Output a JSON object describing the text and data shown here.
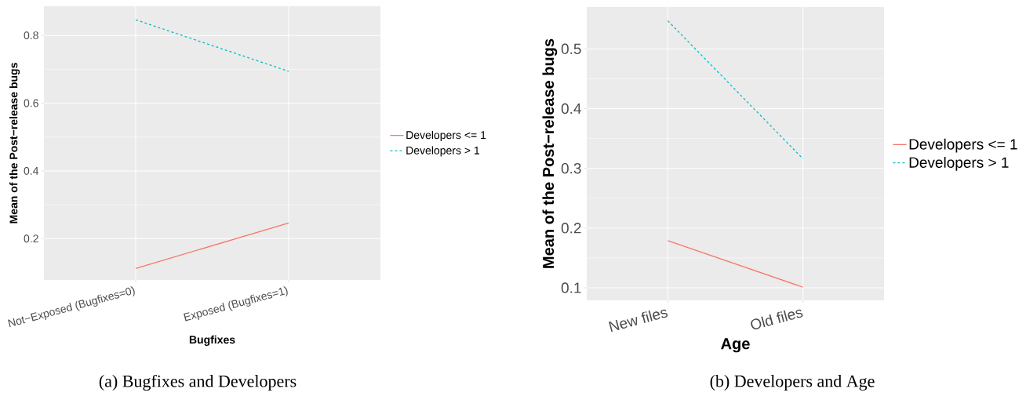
{
  "chart_data": [
    {
      "type": "line",
      "title": "(a) Bugfixes and Developers",
      "xlabel": "Bugfixes",
      "ylabel": "Mean of the Post−release bugs",
      "categories": [
        "Not−Exposed (Bugfixes=0)",
        "Exposed (Bugfixes=1)"
      ],
      "series": [
        {
          "name": "Developers <= 1",
          "color": "#f8766d",
          "line_style": "solid",
          "values": [
            0.112,
            0.246
          ]
        },
        {
          "name": "Developers > 1",
          "color": "#00bfc4",
          "line_style": "dashed",
          "values": [
            0.846,
            0.694
          ]
        }
      ],
      "ylim": [
        0.078,
        0.886
      ],
      "yticks": [
        0.2,
        0.4,
        0.6,
        0.8
      ],
      "grid": true,
      "legend": "right"
    },
    {
      "type": "line",
      "title": "(b) Developers and Age",
      "xlabel": "Age",
      "ylabel": "Mean of the Post−release bugs",
      "categories": [
        "New files",
        "Old files"
      ],
      "series": [
        {
          "name": "Developers <= 1",
          "color": "#f8766d",
          "line_style": "solid",
          "values": [
            0.179,
            0.101
          ]
        },
        {
          "name": "Developers > 1",
          "color": "#00bfc4",
          "line_style": "dashed",
          "values": [
            0.547,
            0.316
          ]
        }
      ],
      "ylim": [
        0.079,
        0.57
      ],
      "yticks": [
        0.1,
        0.2,
        0.3,
        0.4,
        0.5
      ],
      "grid": true,
      "legend": "right"
    }
  ]
}
